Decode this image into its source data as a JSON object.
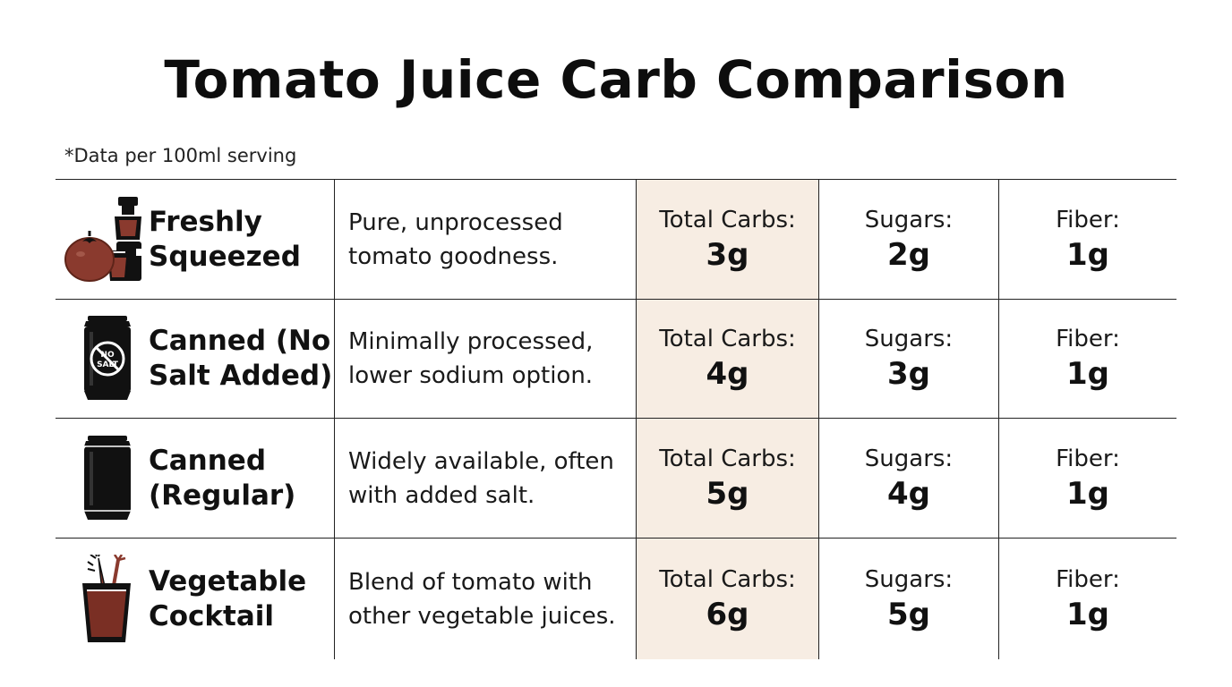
{
  "title": "Tomato Juice Carb Comparison",
  "note": "*Data per 100ml serving",
  "colors": {
    "highlight_column": "#f7ede3",
    "tomato_red": "#8a3a2e",
    "juice_red": "#7a2f24",
    "ink": "#111111"
  },
  "rows": [
    {
      "name": "Freshly\nSqueezed",
      "icon": "tomato-juicer-icon",
      "description": "Pure, unprocessed\ntomato goodness.",
      "carbs_label": "Total Carbs:",
      "carbs_value": "3g",
      "sugars_label": "Sugars:",
      "sugars_value": "2g",
      "fiber_label": "Fiber:",
      "fiber_value": "1g"
    },
    {
      "name": "Canned (No\nSalt Added)",
      "icon": "no-salt-can-icon",
      "icon_text": "NO SALT",
      "description": "Minimally processed,\nlower sodium option.",
      "carbs_label": "Total Carbs:",
      "carbs_value": "4g",
      "sugars_label": "Sugars:",
      "sugars_value": "3g",
      "fiber_label": "Fiber:",
      "fiber_value": "1g"
    },
    {
      "name": "Canned\n(Regular)",
      "icon": "can-icon",
      "description": "Widely available, often\nwith added salt.",
      "carbs_label": "Total Carbs:",
      "carbs_value": "5g",
      "sugars_label": "Sugars:",
      "sugars_value": "4g",
      "fiber_label": "Fiber:",
      "fiber_value": "1g"
    },
    {
      "name": "Vegetable\nCocktail",
      "icon": "vegetable-glass-icon",
      "description": "Blend of tomato with\nother vegetable juices.",
      "carbs_label": "Total Carbs:",
      "carbs_value": "6g",
      "sugars_label": "Sugars:",
      "sugars_value": "5g",
      "fiber_label": "Fiber:",
      "fiber_value": "1g"
    }
  ]
}
